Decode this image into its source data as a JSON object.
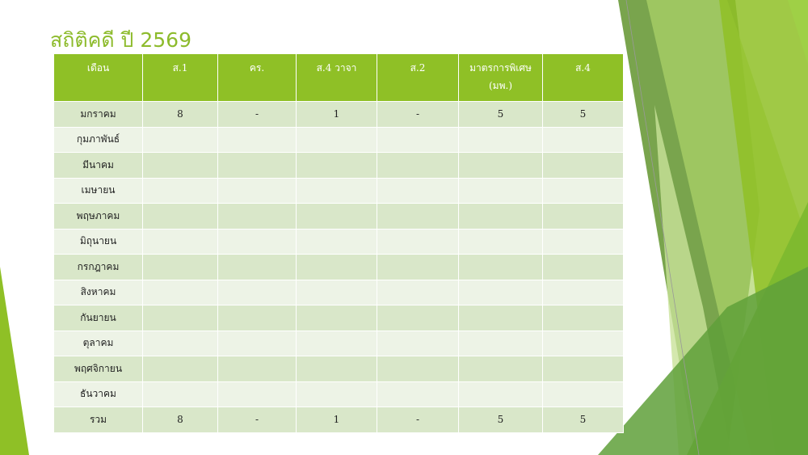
{
  "title": "สถิติคดี ปี 2569",
  "table": {
    "headers": [
      "เดือน",
      "ส.1",
      "คร.",
      "ส.4 วาจา",
      "ส.2",
      "มาตรการพิเศษ (มพ.)",
      "ส.4"
    ],
    "rows": [
      [
        "มกราคม",
        "8",
        "-",
        "1",
        "-",
        "5",
        "5"
      ],
      [
        "กุมภาพันธ์",
        "",
        "",
        "",
        "",
        "",
        ""
      ],
      [
        "มีนาคม",
        "",
        "",
        "",
        "",
        "",
        ""
      ],
      [
        "เมษายน",
        "",
        "",
        "",
        "",
        "",
        ""
      ],
      [
        "พฤษภาคม",
        "",
        "",
        "",
        "",
        "",
        ""
      ],
      [
        "มิถุนายน",
        "",
        "",
        "",
        "",
        "",
        ""
      ],
      [
        "กรกฎาคม",
        "",
        "",
        "",
        "",
        "",
        ""
      ],
      [
        "สิงหาคม",
        "",
        "",
        "",
        "",
        "",
        ""
      ],
      [
        "กันยายน",
        "",
        "",
        "",
        "",
        "",
        ""
      ],
      [
        "ตุลาคม",
        "",
        "",
        "",
        "",
        "",
        ""
      ],
      [
        "พฤศจิกายน",
        "",
        "",
        "",
        "",
        "",
        ""
      ],
      [
        "ธันวาคม",
        "",
        "",
        "",
        "",
        "",
        ""
      ],
      [
        "รวม",
        "8",
        "-",
        "1",
        "-",
        "5",
        "5"
      ]
    ]
  },
  "colors": {
    "accent": "#8fc026",
    "row_odd": "#d9e7c9",
    "row_even": "#edf3e6"
  }
}
